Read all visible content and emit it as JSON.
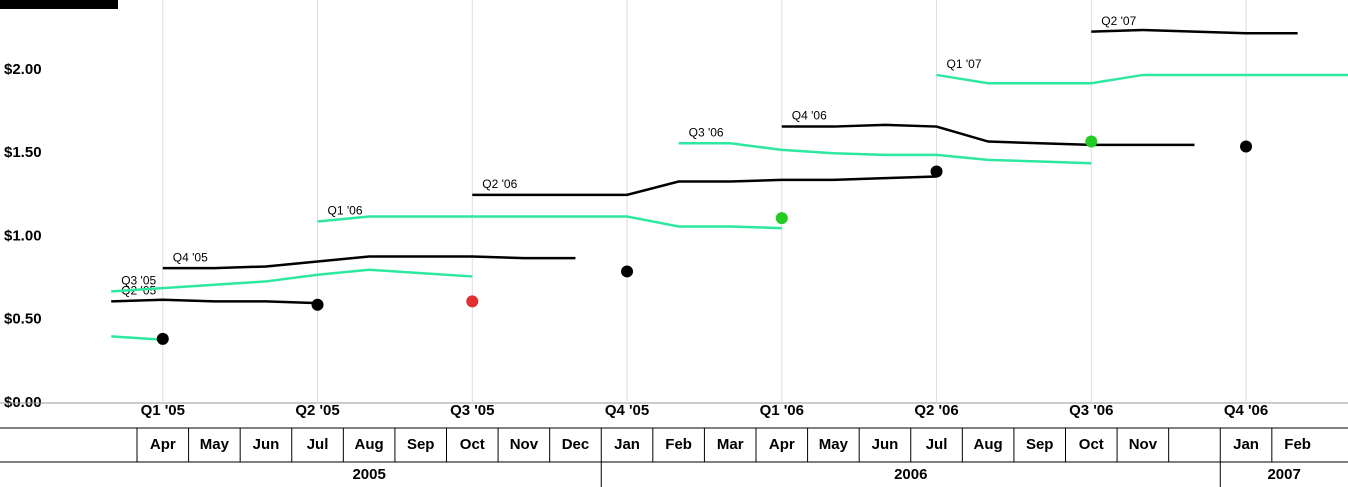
{
  "chart_data": {
    "type": "line",
    "xlim": [
      "2005-04",
      "2007-04"
    ],
    "ylim": [
      0,
      2.42
    ],
    "yticks": [
      {
        "value": 0,
        "label": "$0.00"
      },
      {
        "value": 0.5,
        "label": "$0.50"
      },
      {
        "value": 1,
        "label": "$1.00"
      },
      {
        "value": 1.5,
        "label": "$1.50"
      },
      {
        "value": 2,
        "label": "$2.00"
      }
    ],
    "grid": "x",
    "series": [
      {
        "color": "#2ee8a0",
        "x": [
          "2005-03",
          "2005-04"
        ],
        "values": [
          0.4,
          0.38
        ]
      },
      {
        "name": "Q2 '05",
        "color": "#000000",
        "x": [
          "2005-03",
          "2005-04",
          "2005-05",
          "2005-06",
          "2005-07"
        ],
        "values": [
          0.61,
          0.62,
          0.61,
          0.61,
          0.6
        ]
      },
      {
        "name": "Q3 '05",
        "color": "#2ee8a0",
        "x": [
          "2005-03",
          "2005-04",
          "2005-05",
          "2005-06",
          "2005-07",
          "2005-08",
          "2005-09",
          "2005-10"
        ],
        "values": [
          0.67,
          0.69,
          0.71,
          0.73,
          0.77,
          0.8,
          0.78,
          0.76
        ]
      },
      {
        "name": "Q4 '05",
        "color": "#000000",
        "x": [
          "2005-04",
          "2005-05",
          "2005-06",
          "2005-07",
          "2005-08",
          "2005-09",
          "2005-10",
          "2005-11",
          "2005-12"
        ],
        "values": [
          0.81,
          0.81,
          0.82,
          0.85,
          0.88,
          0.88,
          0.88,
          0.87,
          0.87
        ]
      },
      {
        "name": "Q1 '06",
        "color": "#2ee8a0",
        "x": [
          "2005-07",
          "2005-08",
          "2005-09",
          "2005-10",
          "2005-11",
          "2005-12",
          "2006-01",
          "2006-02",
          "2006-03",
          "2006-04"
        ],
        "values": [
          1.09,
          1.12,
          1.12,
          1.12,
          1.12,
          1.12,
          1.12,
          1.06,
          1.06,
          1.05
        ]
      },
      {
        "name": "Q2 '06",
        "color": "#000000",
        "x": [
          "2005-10",
          "2005-11",
          "2005-12",
          "2006-01",
          "2006-02",
          "2006-03",
          "2006-04",
          "2006-05",
          "2006-06",
          "2006-07"
        ],
        "values": [
          1.25,
          1.25,
          1.25,
          1.25,
          1.33,
          1.33,
          1.34,
          1.34,
          1.35,
          1.36
        ]
      },
      {
        "name": "Q3 '06",
        "color": "#2ee8a0",
        "x": [
          "2006-02",
          "2006-03",
          "2006-04",
          "2006-05",
          "2006-06",
          "2006-07",
          "2006-08",
          "2006-09",
          "2006-10"
        ],
        "values": [
          1.56,
          1.56,
          1.52,
          1.5,
          1.49,
          1.49,
          1.46,
          1.45,
          1.44
        ]
      },
      {
        "name": "Q4 '06",
        "color": "#000000",
        "x": [
          "2006-04",
          "2006-05",
          "2006-06",
          "2006-07",
          "2006-08",
          "2006-09",
          "2006-10",
          "2006-11",
          "2006-12"
        ],
        "values": [
          1.66,
          1.66,
          1.67,
          1.66,
          1.57,
          1.56,
          1.55,
          1.55,
          1.55
        ]
      },
      {
        "name": "Q1 '07",
        "color": "#2ee8a0",
        "x": [
          "2006-07",
          "2006-08",
          "2006-09",
          "2006-10",
          "2006-11",
          "2006-12",
          "2007-01",
          "2007-02",
          "2007-03"
        ],
        "values": [
          1.97,
          1.92,
          1.92,
          1.92,
          1.97,
          1.97,
          1.97,
          1.97,
          1.97
        ]
      },
      {
        "name": "Q2 '07",
        "color": "#000000",
        "x": [
          "2006-10",
          "2006-11",
          "2006-12",
          "2007-01",
          "2007-02"
        ],
        "values": [
          2.23,
          2.24,
          2.23,
          2.22,
          2.22
        ]
      }
    ],
    "actuals": {
      "categories": [
        "Q1 '05",
        "Q2 '05",
        "Q3 '05",
        "Q4 '05",
        "Q1 '06",
        "Q2 '06",
        "Q3 '06",
        "Q4 '06"
      ],
      "x": [
        "2005-04",
        "2005-07",
        "2005-10",
        "2006-01",
        "2006-04",
        "2006-07",
        "2006-10",
        "2007-01"
      ],
      "values": [
        0.385,
        0.59,
        0.61,
        0.79,
        1.11,
        1.39,
        1.57,
        1.54
      ],
      "colors": [
        "#000000",
        "#000000",
        "#e03030",
        "#000000",
        "#22cc22",
        "#000000",
        "#22cc22",
        "#000000"
      ]
    },
    "months": {
      "x": [
        "2005-04",
        "2005-05",
        "2005-06",
        "2005-07",
        "2005-08",
        "2005-09",
        "2005-10",
        "2005-11",
        "2005-12",
        "2006-01",
        "2006-02",
        "2006-03",
        "2006-04",
        "2006-05",
        "2006-06",
        "2006-07",
        "2006-08",
        "2006-09",
        "2006-10",
        "2006-11",
        "2006-12",
        "2007-01",
        "2007-02"
      ],
      "labels": [
        "Apr",
        "May",
        "Jun",
        "Jul",
        "Aug",
        "Sep",
        "Oct",
        "Nov",
        "Dec",
        "Jan",
        "Feb",
        "Mar",
        "Apr",
        "May",
        "Jun",
        "Jul",
        "Aug",
        "Sep",
        "Oct",
        "Nov",
        null,
        "Jan",
        "Feb"
      ]
    },
    "years": {
      "labels": [
        "2005",
        "2006",
        "2007"
      ],
      "starts": [
        "2005-04",
        "2006-01",
        "2007-01"
      ],
      "ends": [
        "2006-01",
        "2007-01",
        "2007-04"
      ]
    }
  }
}
